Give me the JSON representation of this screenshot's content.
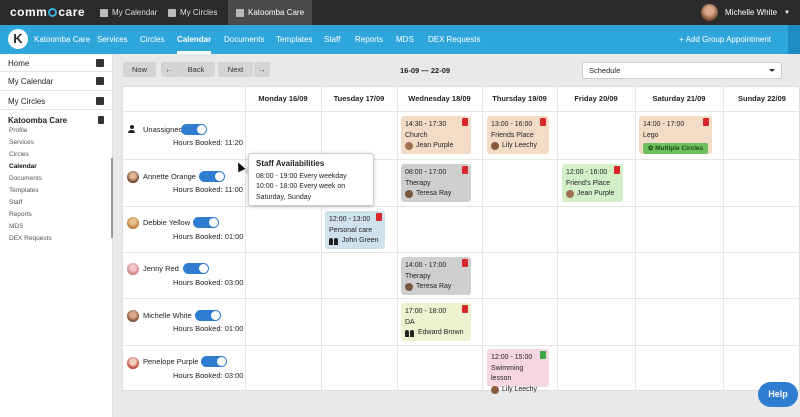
{
  "topbar": {
    "logo": "comm care",
    "tabs": [
      "My Calendar",
      "My Circles",
      "Katoomba Care"
    ],
    "user": "Michelle White"
  },
  "nav": {
    "org_initial": "K",
    "items": [
      "Katoomba Care",
      "Services",
      "Circles",
      "Calendar",
      "Documents",
      "Templates",
      "Staff",
      "Reports",
      "MDS",
      "DEX Requests"
    ],
    "active": "Calendar",
    "add": "+ Add Group Appointment"
  },
  "sidebar": {
    "main": [
      "Home",
      "My Calendar",
      "My Circles",
      "Katoomba Care"
    ],
    "sub": [
      "Profile",
      "Services",
      "Circles",
      "Calendar",
      "Documents",
      "Templates",
      "Staff",
      "Reports",
      "MDS",
      "DEX Requests"
    ]
  },
  "toolbar": {
    "now": "Now",
    "back": "Back",
    "next": "Next",
    "range": "16-09 — 22-09",
    "view": "Schedule"
  },
  "days": [
    "Monday 16/09",
    "Tuesday 17/09",
    "Wednesday 18/09",
    "Thursday 19/09",
    "Friday 20/09",
    "Saturday 21/09",
    "Sunday 22/09"
  ],
  "people": [
    {
      "name": "Unassigned",
      "hours": "Hours Booked: 11:20"
    },
    {
      "name": "Annette Orange",
      "hours": "Hours Booked: 11:00"
    },
    {
      "name": "Debbie Yellow",
      "hours": "Hours Booked: 01:00"
    },
    {
      "name": "Jenny Red",
      "hours": "Hours Booked: 03:00"
    },
    {
      "name": "Michelle White",
      "hours": "Hours Booked: 01:00"
    },
    {
      "name": "Penelope Purple",
      "hours": "Hours Booked: 03:00"
    }
  ],
  "appointments": [
    {
      "time": "14:30 - 17:30",
      "title": "Church",
      "who": "Jean Purple",
      "color": "#f3dcc6"
    },
    {
      "time": "13:00 - 16:00",
      "title": "Friends Place",
      "who": "Lily Leechy",
      "color": "#f3dcc6"
    },
    {
      "time": "14:00 - 17:00",
      "title": "Lego",
      "badge": "Multiple Circles",
      "color": "#f3dcc6"
    },
    {
      "time": "08:00 - 17:00",
      "title": "Therapy",
      "who": "Teresa Ray",
      "color": "#cfcfcf"
    },
    {
      "time": "12:00 - 16:00",
      "title": "Friend's Place",
      "who": "Jean Purple",
      "color": "#d3f0c9"
    },
    {
      "time": "12:00 - 13:00",
      "title": "Personal care",
      "who": "John Green",
      "color": "#cfe1ea"
    },
    {
      "time": "14:00 - 17:00",
      "title": "Therapy",
      "who": "Teresa Ray",
      "color": "#cfcfcf"
    },
    {
      "time": "17:00 - 18:00",
      "title": "DA",
      "who": "Edward Brown",
      "color": "#eef2cf"
    },
    {
      "time": "12:00 - 15:00",
      "title": "Swimming lesson",
      "who": "Lily Leechy",
      "color": "#f6d6e0"
    }
  ],
  "popover": {
    "title": "Staff Availabilities",
    "line1": "08:00 - 19:00  Every weekday",
    "line2": "10:00 - 18:00  Every week on",
    "line3": "Saturday, Sunday"
  },
  "help": "Help"
}
